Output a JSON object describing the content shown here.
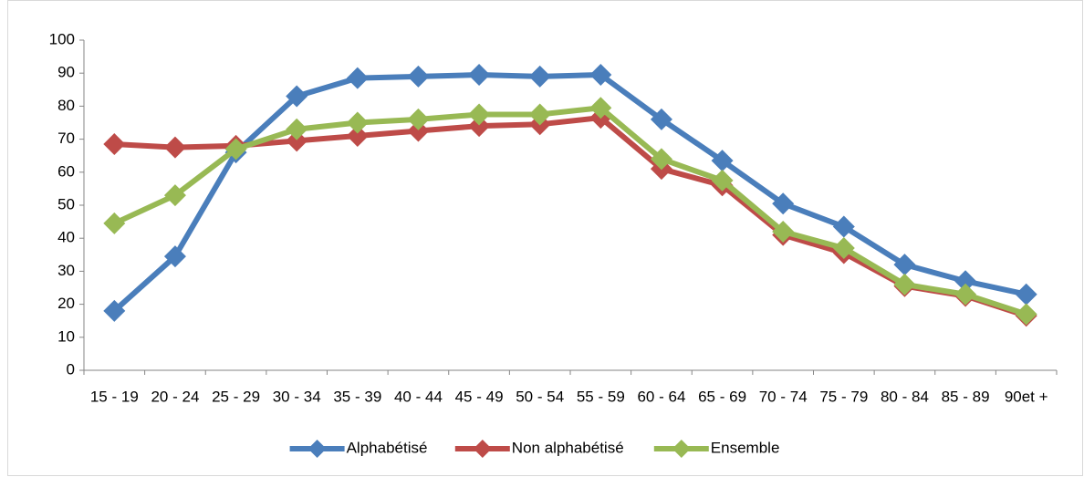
{
  "chart_data": {
    "type": "line",
    "categories": [
      "15 - 19",
      "20 - 24",
      "25 - 29",
      "30 - 34",
      "35 - 39",
      "40 - 44",
      "45 - 49",
      "50 - 54",
      "55 - 59",
      "60 - 64",
      "65 - 69",
      "70 - 74",
      "75 - 79",
      "80 - 84",
      "85 - 89",
      "90et +"
    ],
    "series": [
      {
        "name": "Alphabétisé",
        "color": "#4a7ebb",
        "values": [
          18,
          34.5,
          66,
          83,
          88.5,
          89,
          89.5,
          89,
          89.5,
          76,
          63.5,
          50.5,
          43.5,
          32,
          27,
          23
        ]
      },
      {
        "name": "Non alphabétisé",
        "color": "#be4b48",
        "values": [
          68.5,
          67.5,
          68,
          69.5,
          71,
          72.5,
          74,
          74.5,
          76.5,
          61,
          56,
          41,
          35.5,
          25.5,
          22.5,
          16.5
        ]
      },
      {
        "name": "Ensemble",
        "color": "#98b954",
        "values": [
          44.5,
          53,
          67,
          73,
          75,
          76,
          77.5,
          77.5,
          79.5,
          64,
          57.5,
          42,
          37,
          26,
          23,
          17
        ]
      }
    ],
    "ylim": [
      0,
      100
    ],
    "yticks": [
      0,
      10,
      20,
      30,
      40,
      50,
      60,
      70,
      80,
      90,
      100
    ],
    "legend": "bottom"
  }
}
